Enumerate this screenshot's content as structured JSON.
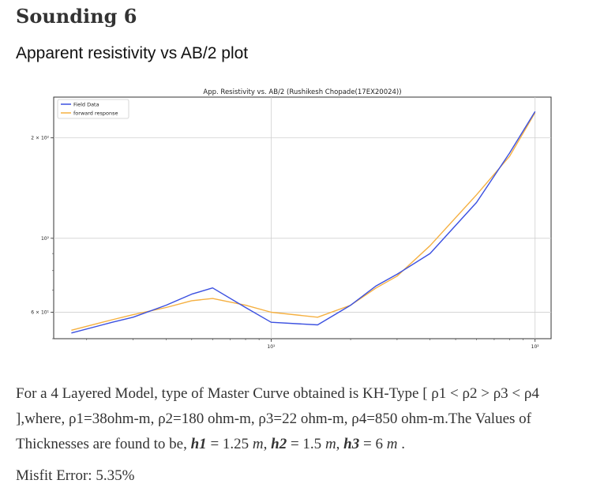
{
  "page": {
    "heading": "Sounding 6",
    "subheading": "Apparent resistivity vs AB/2 plot",
    "description": {
      "p1": "For a 4 Layered Model, type of Master Curve obtained is KH-Type [ ρ1 < ρ2 > ρ3 < ρ4 ],where, ρ1=38ohm-m, ρ2=180 ohm-m, ρ3=22 ohm-m, ρ4=850 ohm-m.The Values of Thicknesses are found to be, ",
      "h1_label": "h1",
      "h1_value": " = 1.25 ",
      "h2_label": "h2",
      "h2_value": " = 1.5 ",
      "h3_label": "h3",
      "h3_value": " = 6 ",
      "unit": "m",
      "end": " ."
    },
    "misfit": "Misfit Error: 5.35%"
  },
  "chart_data": {
    "type": "line",
    "title": "App. Resistivity vs. AB/2 (Rushikesh Chopade(17EX20024))",
    "xlabel": "",
    "ylabel": "",
    "xscale": "log",
    "yscale": "log",
    "xlim": [
      1.5,
      115
    ],
    "ylim": [
      50,
      265
    ],
    "x_ticks": [
      {
        "value": 10,
        "label": "10¹"
      },
      {
        "value": 100,
        "label": "10²"
      }
    ],
    "y_ticks": [
      {
        "value": 60,
        "label": "6 × 10¹"
      },
      {
        "value": 100,
        "label": "10²"
      },
      {
        "value": 200,
        "label": "2 × 10²"
      }
    ],
    "grid": true,
    "legend_position": "top-left",
    "series": [
      {
        "name": "Field Data",
        "color": "#3b50e0",
        "x": [
          1.75,
          2.5,
          3.0,
          4.0,
          5.0,
          6.0,
          8.0,
          10.0,
          15.0,
          20.0,
          25.0,
          30.0,
          40.0,
          60.0,
          80.0,
          100.0
        ],
        "y": [
          52,
          56,
          58,
          63,
          68,
          71,
          62,
          56,
          55,
          63,
          72,
          78,
          90,
          128,
          180,
          240
        ]
      },
      {
        "name": "forward response",
        "color": "#f5b041",
        "x": [
          1.75,
          2.5,
          3.0,
          4.0,
          5.0,
          6.0,
          8.0,
          10.0,
          15.0,
          20.0,
          25.0,
          30.0,
          40.0,
          60.0,
          80.0,
          100.0
        ],
        "y": [
          53,
          57,
          59,
          62,
          65,
          66,
          63,
          60,
          58,
          63,
          71,
          77,
          95,
          135,
          176,
          238
        ]
      }
    ]
  }
}
